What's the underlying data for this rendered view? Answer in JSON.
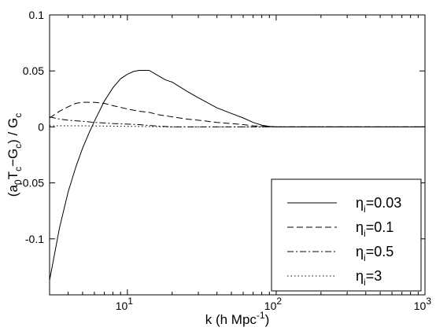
{
  "chart_data": {
    "type": "line",
    "xlabel": "k (h Mpc-1)",
    "ylabel": "(a0Tc−Gc) / Gc",
    "x_scale": "log",
    "xlim": [
      3,
      1000
    ],
    "ylim": [
      -0.15,
      0.1
    ],
    "x_ticks": [
      10,
      100,
      1000
    ],
    "x_tick_labels": [
      {
        "base": "10",
        "exp": "1"
      },
      {
        "base": "10",
        "exp": "2"
      },
      {
        "base": "10",
        "exp": "3"
      }
    ],
    "y_ticks": [
      -0.1,
      -0.05,
      0,
      0.05,
      0.1
    ],
    "y_tick_labels": [
      "-0.1",
      "-0.05",
      "0",
      "0.05",
      "0.1"
    ],
    "grid": false,
    "legend_position": "bottom-right",
    "series": [
      {
        "name": "ηi=0.03",
        "label": {
          "sym": "η",
          "sub": "i",
          "rest": "=0.03"
        },
        "style": "solid",
        "x": [
          3,
          3.5,
          4,
          4.5,
          5,
          5.5,
          6,
          7,
          8,
          9,
          10,
          11,
          12,
          14,
          16,
          18,
          20,
          25,
          30,
          40,
          50,
          60,
          70,
          80,
          90,
          100,
          150,
          200,
          300,
          500,
          1000
        ],
        "y": [
          -0.137,
          -0.09,
          -0.058,
          -0.036,
          -0.019,
          -0.006,
          0.005,
          0.023,
          0.035,
          0.043,
          0.047,
          0.0495,
          0.0505,
          0.0505,
          0.046,
          0.042,
          0.04,
          0.032,
          0.026,
          0.017,
          0.012,
          0.008,
          0.004,
          0.0015,
          0.0005,
          0.0,
          0.0,
          0.0,
          0.0,
          0.0,
          0.0
        ]
      },
      {
        "name": "ηi=0.1",
        "label": {
          "sym": "η",
          "sub": "i",
          "rest": "=0.1"
        },
        "style": "dashed",
        "x": [
          3,
          3.5,
          4,
          4.5,
          5,
          6,
          7,
          8,
          10,
          12,
          14,
          16,
          20,
          25,
          30,
          40,
          50,
          60,
          70,
          80,
          100,
          150,
          200,
          300,
          500,
          1000
        ],
        "y": [
          0.008,
          0.014,
          0.018,
          0.021,
          0.022,
          0.022,
          0.021,
          0.019,
          0.016,
          0.014,
          0.013,
          0.011,
          0.009,
          0.007,
          0.006,
          0.004,
          0.003,
          0.002,
          0.001,
          0.0005,
          0.0,
          0.0,
          0.0,
          0.0,
          0.0,
          0.0
        ]
      },
      {
        "name": "ηi=0.5",
        "label": {
          "sym": "η",
          "sub": "i",
          "rest": "=0.5"
        },
        "style": "dashdot",
        "x": [
          3,
          3.5,
          4,
          5,
          6,
          7,
          8,
          10,
          12,
          15,
          20,
          30,
          40,
          60,
          80,
          100,
          200,
          300,
          500,
          1000
        ],
        "y": [
          0.009,
          0.007,
          0.006,
          0.005,
          0.004,
          0.0035,
          0.003,
          0.0025,
          0.002,
          0.001,
          0.0,
          0.0,
          0.0,
          0.0,
          0.0,
          0.0,
          0.0,
          0.0,
          0.0,
          0.0
        ]
      },
      {
        "name": "ηi=3",
        "label": {
          "sym": "η",
          "sub": "i",
          "rest": "=3"
        },
        "style": "dotted",
        "x": [
          3,
          5,
          10,
          20,
          50,
          100,
          200,
          500,
          1000
        ],
        "y": [
          0.001,
          0.001,
          0.0005,
          0.0,
          0.0,
          0.0,
          0.0,
          0.0,
          0.0
        ]
      }
    ]
  }
}
